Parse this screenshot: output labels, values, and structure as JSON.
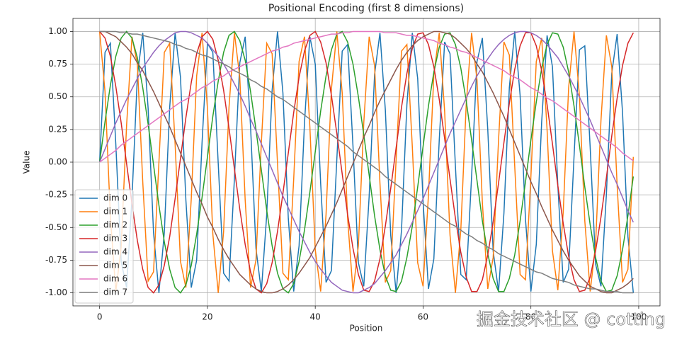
{
  "chart_data": {
    "type": "line",
    "title": "Positional Encoding (first 8 dimensions)",
    "x_label": "Position",
    "y_label": "Value",
    "watermark": "掘金技术社区 @ cotting",
    "legend": "lower left",
    "grid": true,
    "xlim": [
      -4.95,
      103.95
    ],
    "xticks": [
      0,
      20,
      40,
      60,
      80,
      100
    ],
    "ylim": [
      -1.1,
      1.1
    ],
    "yticks": [
      {
        "value": -1,
        "label": "-1.00"
      },
      {
        "value": -0.75,
        "label": "-0.75"
      },
      {
        "value": -0.5,
        "label": "-0.50"
      },
      {
        "value": -0.25,
        "label": "-0.25"
      },
      {
        "value": 0,
        "label": "0.00"
      },
      {
        "value": 0.25,
        "label": "0.25"
      },
      {
        "value": 0.5,
        "label": "0.50"
      },
      {
        "value": 0.75,
        "label": "0.75"
      },
      {
        "value": 1,
        "label": "1.00"
      }
    ],
    "x": [
      0,
      1,
      2,
      3,
      4,
      5,
      6,
      7,
      8,
      9,
      10,
      11,
      12,
      13,
      14,
      15,
      16,
      17,
      18,
      19,
      20,
      21,
      22,
      23,
      24,
      25,
      26,
      27,
      28,
      29,
      30,
      31,
      32,
      33,
      34,
      35,
      36,
      37,
      38,
      39,
      40,
      41,
      42,
      43,
      44,
      45,
      46,
      47,
      48,
      49,
      50,
      51,
      52,
      53,
      54,
      55,
      56,
      57,
      58,
      59,
      60,
      61,
      62,
      63,
      64,
      65,
      66,
      67,
      68,
      69,
      70,
      71,
      72,
      73,
      74,
      75,
      76,
      77,
      78,
      79,
      80,
      81,
      82,
      83,
      84,
      85,
      86,
      87,
      88,
      89,
      90,
      91,
      92,
      93,
      94,
      95,
      96,
      97,
      98,
      99
    ],
    "series": [
      {
        "name": "dim 0",
        "color": "#1f77b4",
        "values": [
          0,
          0.84,
          0.91,
          0.14,
          -0.76,
          -0.96,
          -0.28,
          0.66,
          0.99,
          0.41,
          -0.54,
          -1,
          -0.54,
          0.42,
          0.99,
          0.65,
          -0.29,
          -0.96,
          -0.75,
          0.15,
          0.91,
          0.84,
          -0.01,
          -0.85,
          -0.91,
          -0.13,
          0.76,
          0.96,
          0.27,
          -0.66,
          -0.99,
          -0.4,
          0.55,
          1,
          0.53,
          -0.43,
          -0.99,
          -0.64,
          0.3,
          0.96,
          0.75,
          -0.16,
          -0.92,
          -0.83,
          0.02,
          0.85,
          0.9,
          0.12,
          -0.77,
          -0.95,
          -0.26,
          0.67,
          0.99,
          0.4,
          -0.56,
          -1,
          -0.52,
          0.44,
          0.99,
          0.64,
          -0.3,
          -0.97,
          -0.74,
          0.17,
          0.92,
          0.83,
          -0.03,
          -0.86,
          -0.9,
          -0.11,
          0.77,
          0.95,
          0.25,
          -0.68,
          -0.99,
          -0.39,
          0.57,
          1,
          0.51,
          -0.44,
          -0.99,
          -0.63,
          0.31,
          0.97,
          0.73,
          -0.18,
          -0.92,
          -0.82,
          0.04,
          0.86,
          0.89,
          0.11,
          -0.78,
          -0.95,
          -0.25,
          0.68,
          0.98,
          0.38,
          -0.57,
          -1
        ]
      },
      {
        "name": "dim 1",
        "color": "#ff7f0e",
        "values": [
          1,
          0.54,
          -0.42,
          -0.99,
          -0.65,
          0.28,
          0.96,
          0.75,
          -0.15,
          -0.91,
          -0.84,
          0,
          0.84,
          0.91,
          0.14,
          -0.76,
          -0.96,
          -0.28,
          0.66,
          0.99,
          0.41,
          -0.55,
          -1,
          -0.53,
          0.42,
          0.99,
          0.65,
          -0.29,
          -0.96,
          -0.75,
          0.15,
          0.91,
          0.83,
          -0.01,
          -0.85,
          -0.9,
          -0.13,
          0.77,
          0.96,
          0.27,
          -0.67,
          -0.99,
          -0.4,
          0.56,
          1,
          0.53,
          -0.43,
          -0.99,
          -0.64,
          0.3,
          0.96,
          0.74,
          -0.16,
          -0.92,
          -0.83,
          0.02,
          0.85,
          0.9,
          0.12,
          -0.77,
          -0.95,
          -0.25,
          0.67,
          0.99,
          0.39,
          -0.56,
          -1,
          -0.52,
          0.44,
          0.99,
          0.63,
          -0.31,
          -0.97,
          -0.73,
          0.17,
          0.92,
          0.82,
          -0.03,
          -0.86,
          -0.9,
          -0.11,
          0.77,
          0.95,
          0.25,
          -0.68,
          -0.98,
          -0.38,
          0.57,
          1,
          0.51,
          -0.45,
          -0.99,
          -0.63,
          0.32,
          0.97,
          0.73,
          -0.18,
          -0.92,
          -0.82,
          0.04
        ]
      },
      {
        "name": "dim 2",
        "color": "#2ca02c",
        "values": [
          0,
          0.31,
          0.59,
          0.81,
          0.95,
          1,
          0.95,
          0.8,
          0.57,
          0.29,
          -0.02,
          -0.33,
          -0.61,
          -0.82,
          -0.96,
          -1,
          -0.94,
          -0.79,
          -0.55,
          -0.27,
          0.04,
          0.35,
          0.62,
          0.84,
          0.97,
          1,
          0.93,
          0.78,
          0.54,
          0.25,
          -0.06,
          -0.37,
          -0.64,
          -0.85,
          -0.97,
          -1,
          -0.93,
          -0.76,
          -0.52,
          -0.23,
          0.08,
          0.39,
          0.66,
          0.86,
          0.98,
          1,
          0.92,
          0.75,
          0.5,
          0.21,
          -0.1,
          -0.41,
          -0.67,
          -0.87,
          -0.98,
          -0.99,
          -0.91,
          -0.73,
          -0.49,
          -0.19,
          0.12,
          0.43,
          0.69,
          0.88,
          0.98,
          0.99,
          0.9,
          0.72,
          0.47,
          0.17,
          -0.14,
          -0.45,
          -0.7,
          -0.89,
          -0.99,
          -0.99,
          -0.89,
          -0.71,
          -0.45,
          -0.15,
          0.17,
          0.46,
          0.72,
          0.9,
          0.99,
          0.98,
          0.88,
          0.69,
          0.43,
          0.13,
          -0.19,
          -0.48,
          -0.73,
          -0.91,
          -0.99,
          -0.98,
          -0.87,
          -0.67,
          -0.41,
          -0.11
        ]
      },
      {
        "name": "dim 3",
        "color": "#d62728",
        "values": [
          1,
          0.95,
          0.81,
          0.58,
          0.3,
          -0.01,
          -0.32,
          -0.6,
          -0.82,
          -0.96,
          -1,
          -0.94,
          -0.79,
          -0.57,
          -0.28,
          0.03,
          0.34,
          0.61,
          0.83,
          0.96,
          1,
          0.94,
          0.78,
          0.55,
          0.26,
          -0.05,
          -0.36,
          -0.63,
          -0.84,
          -0.97,
          -1,
          -0.93,
          -0.77,
          -0.53,
          -0.24,
          0.07,
          0.38,
          0.65,
          0.85,
          0.97,
          1,
          0.92,
          0.76,
          0.51,
          0.22,
          -0.09,
          -0.4,
          -0.66,
          -0.86,
          -0.98,
          -0.99,
          -0.91,
          -0.74,
          -0.49,
          -0.2,
          0.11,
          0.42,
          0.68,
          0.87,
          0.98,
          0.99,
          0.9,
          0.73,
          0.48,
          0.18,
          -0.13,
          -0.43,
          -0.69,
          -0.88,
          -0.99,
          -0.99,
          -0.9,
          -0.71,
          -0.46,
          -0.16,
          0.15,
          0.45,
          0.71,
          0.89,
          0.99,
          0.99,
          0.89,
          0.7,
          0.44,
          0.14,
          -0.18,
          -0.47,
          -0.72,
          -0.9,
          -0.99,
          -0.98,
          -0.88,
          -0.68,
          -0.42,
          -0.12,
          0.2,
          0.49,
          0.74,
          0.91,
          0.99
        ]
      },
      {
        "name": "dim 4",
        "color": "#9467bd",
        "values": [
          0,
          0.1,
          0.2,
          0.3,
          0.39,
          0.48,
          0.56,
          0.64,
          0.72,
          0.78,
          0.84,
          0.89,
          0.93,
          0.96,
          0.99,
          1,
          1,
          0.99,
          0.97,
          0.95,
          0.91,
          0.86,
          0.81,
          0.75,
          0.68,
          0.6,
          0.52,
          0.43,
          0.33,
          0.24,
          0.14,
          0.04,
          -0.06,
          -0.16,
          -0.26,
          -0.35,
          -0.44,
          -0.53,
          -0.61,
          -0.69,
          -0.76,
          -0.82,
          -0.87,
          -0.92,
          -0.95,
          -0.98,
          -0.99,
          -1,
          -1,
          -0.98,
          -0.96,
          -0.93,
          -0.88,
          -0.83,
          -0.77,
          -0.71,
          -0.63,
          -0.55,
          -0.46,
          -0.37,
          -0.28,
          -0.18,
          -0.08,
          0.02,
          0.12,
          0.22,
          0.31,
          0.4,
          0.49,
          0.58,
          0.66,
          0.73,
          0.79,
          0.85,
          0.9,
          0.94,
          0.97,
          0.99,
          1,
          1,
          0.99,
          0.97,
          0.94,
          0.9,
          0.85,
          0.8,
          0.73,
          0.66,
          0.58,
          0.5,
          0.41,
          0.32,
          0.22,
          0.12,
          0.02,
          -0.08,
          -0.17,
          -0.27,
          -0.37,
          -0.46
        ]
      },
      {
        "name": "dim 5",
        "color": "#8c564b",
        "values": [
          1,
          1,
          0.98,
          0.96,
          0.92,
          0.88,
          0.83,
          0.76,
          0.7,
          0.62,
          0.54,
          0.45,
          0.36,
          0.27,
          0.17,
          0.07,
          -0.03,
          -0.13,
          -0.23,
          -0.32,
          -0.42,
          -0.5,
          -0.59,
          -0.67,
          -0.74,
          -0.8,
          -0.86,
          -0.9,
          -0.94,
          -0.97,
          -0.99,
          -1,
          -1,
          -0.99,
          -0.97,
          -0.94,
          -0.9,
          -0.85,
          -0.79,
          -0.73,
          -0.65,
          -0.57,
          -0.49,
          -0.4,
          -0.31,
          -0.21,
          -0.11,
          -0.01,
          0.09,
          0.19,
          0.28,
          0.38,
          0.47,
          0.55,
          0.63,
          0.71,
          0.78,
          0.84,
          0.89,
          0.93,
          0.96,
          0.98,
          1,
          1,
          0.99,
          0.98,
          0.95,
          0.91,
          0.87,
          0.82,
          0.75,
          0.69,
          0.61,
          0.53,
          0.44,
          0.35,
          0.25,
          0.15,
          0.05,
          -0.05,
          -0.15,
          -0.24,
          -0.34,
          -0.43,
          -0.52,
          -0.6,
          -0.68,
          -0.75,
          -0.81,
          -0.87,
          -0.91,
          -0.95,
          -0.97,
          -0.99,
          -1,
          -1,
          -0.98,
          -0.96,
          -0.93,
          -0.89
        ]
      },
      {
        "name": "dim 6",
        "color": "#e377c2",
        "values": [
          0,
          0.03,
          0.06,
          0.09,
          0.13,
          0.16,
          0.19,
          0.22,
          0.25,
          0.28,
          0.31,
          0.34,
          0.37,
          0.4,
          0.43,
          0.46,
          0.48,
          0.51,
          0.54,
          0.57,
          0.59,
          0.62,
          0.64,
          0.66,
          0.69,
          0.71,
          0.73,
          0.75,
          0.77,
          0.79,
          0.81,
          0.83,
          0.85,
          0.86,
          0.88,
          0.89,
          0.91,
          0.92,
          0.93,
          0.94,
          0.95,
          0.96,
          0.97,
          0.98,
          0.98,
          0.99,
          0.99,
          1,
          1,
          1,
          1,
          1,
          1,
          0.99,
          0.99,
          0.99,
          0.98,
          0.97,
          0.97,
          0.96,
          0.95,
          0.94,
          0.93,
          0.91,
          0.9,
          0.88,
          0.87,
          0.85,
          0.84,
          0.82,
          0.8,
          0.78,
          0.76,
          0.74,
          0.72,
          0.7,
          0.67,
          0.65,
          0.63,
          0.6,
          0.57,
          0.55,
          0.52,
          0.49,
          0.47,
          0.44,
          0.41,
          0.38,
          0.35,
          0.32,
          0.29,
          0.26,
          0.23,
          0.2,
          0.17,
          0.14,
          0.11,
          0.07,
          0.04,
          0.01
        ]
      },
      {
        "name": "dim 7",
        "color": "#7f7f7f",
        "values": [
          1,
          1,
          1,
          1,
          0.99,
          0.99,
          0.98,
          0.98,
          0.97,
          0.96,
          0.95,
          0.94,
          0.93,
          0.92,
          0.9,
          0.89,
          0.87,
          0.86,
          0.84,
          0.82,
          0.81,
          0.79,
          0.77,
          0.75,
          0.73,
          0.7,
          0.68,
          0.66,
          0.63,
          0.61,
          0.58,
          0.56,
          0.53,
          0.5,
          0.48,
          0.45,
          0.42,
          0.39,
          0.36,
          0.33,
          0.3,
          0.27,
          0.24,
          0.21,
          0.18,
          0.15,
          0.12,
          0.08,
          0.05,
          0.02,
          -0.01,
          -0.04,
          -0.07,
          -0.11,
          -0.14,
          -0.17,
          -0.2,
          -0.23,
          -0.26,
          -0.29,
          -0.32,
          -0.35,
          -0.38,
          -0.41,
          -0.44,
          -0.47,
          -0.49,
          -0.52,
          -0.55,
          -0.57,
          -0.6,
          -0.62,
          -0.65,
          -0.67,
          -0.7,
          -0.72,
          -0.74,
          -0.76,
          -0.78,
          -0.8,
          -0.82,
          -0.84,
          -0.85,
          -0.87,
          -0.89,
          -0.9,
          -0.91,
          -0.92,
          -0.94,
          -0.95,
          -0.96,
          -0.97,
          -0.97,
          -0.98,
          -0.99,
          -0.99,
          -0.99,
          -1,
          -1,
          -1
        ]
      }
    ]
  }
}
